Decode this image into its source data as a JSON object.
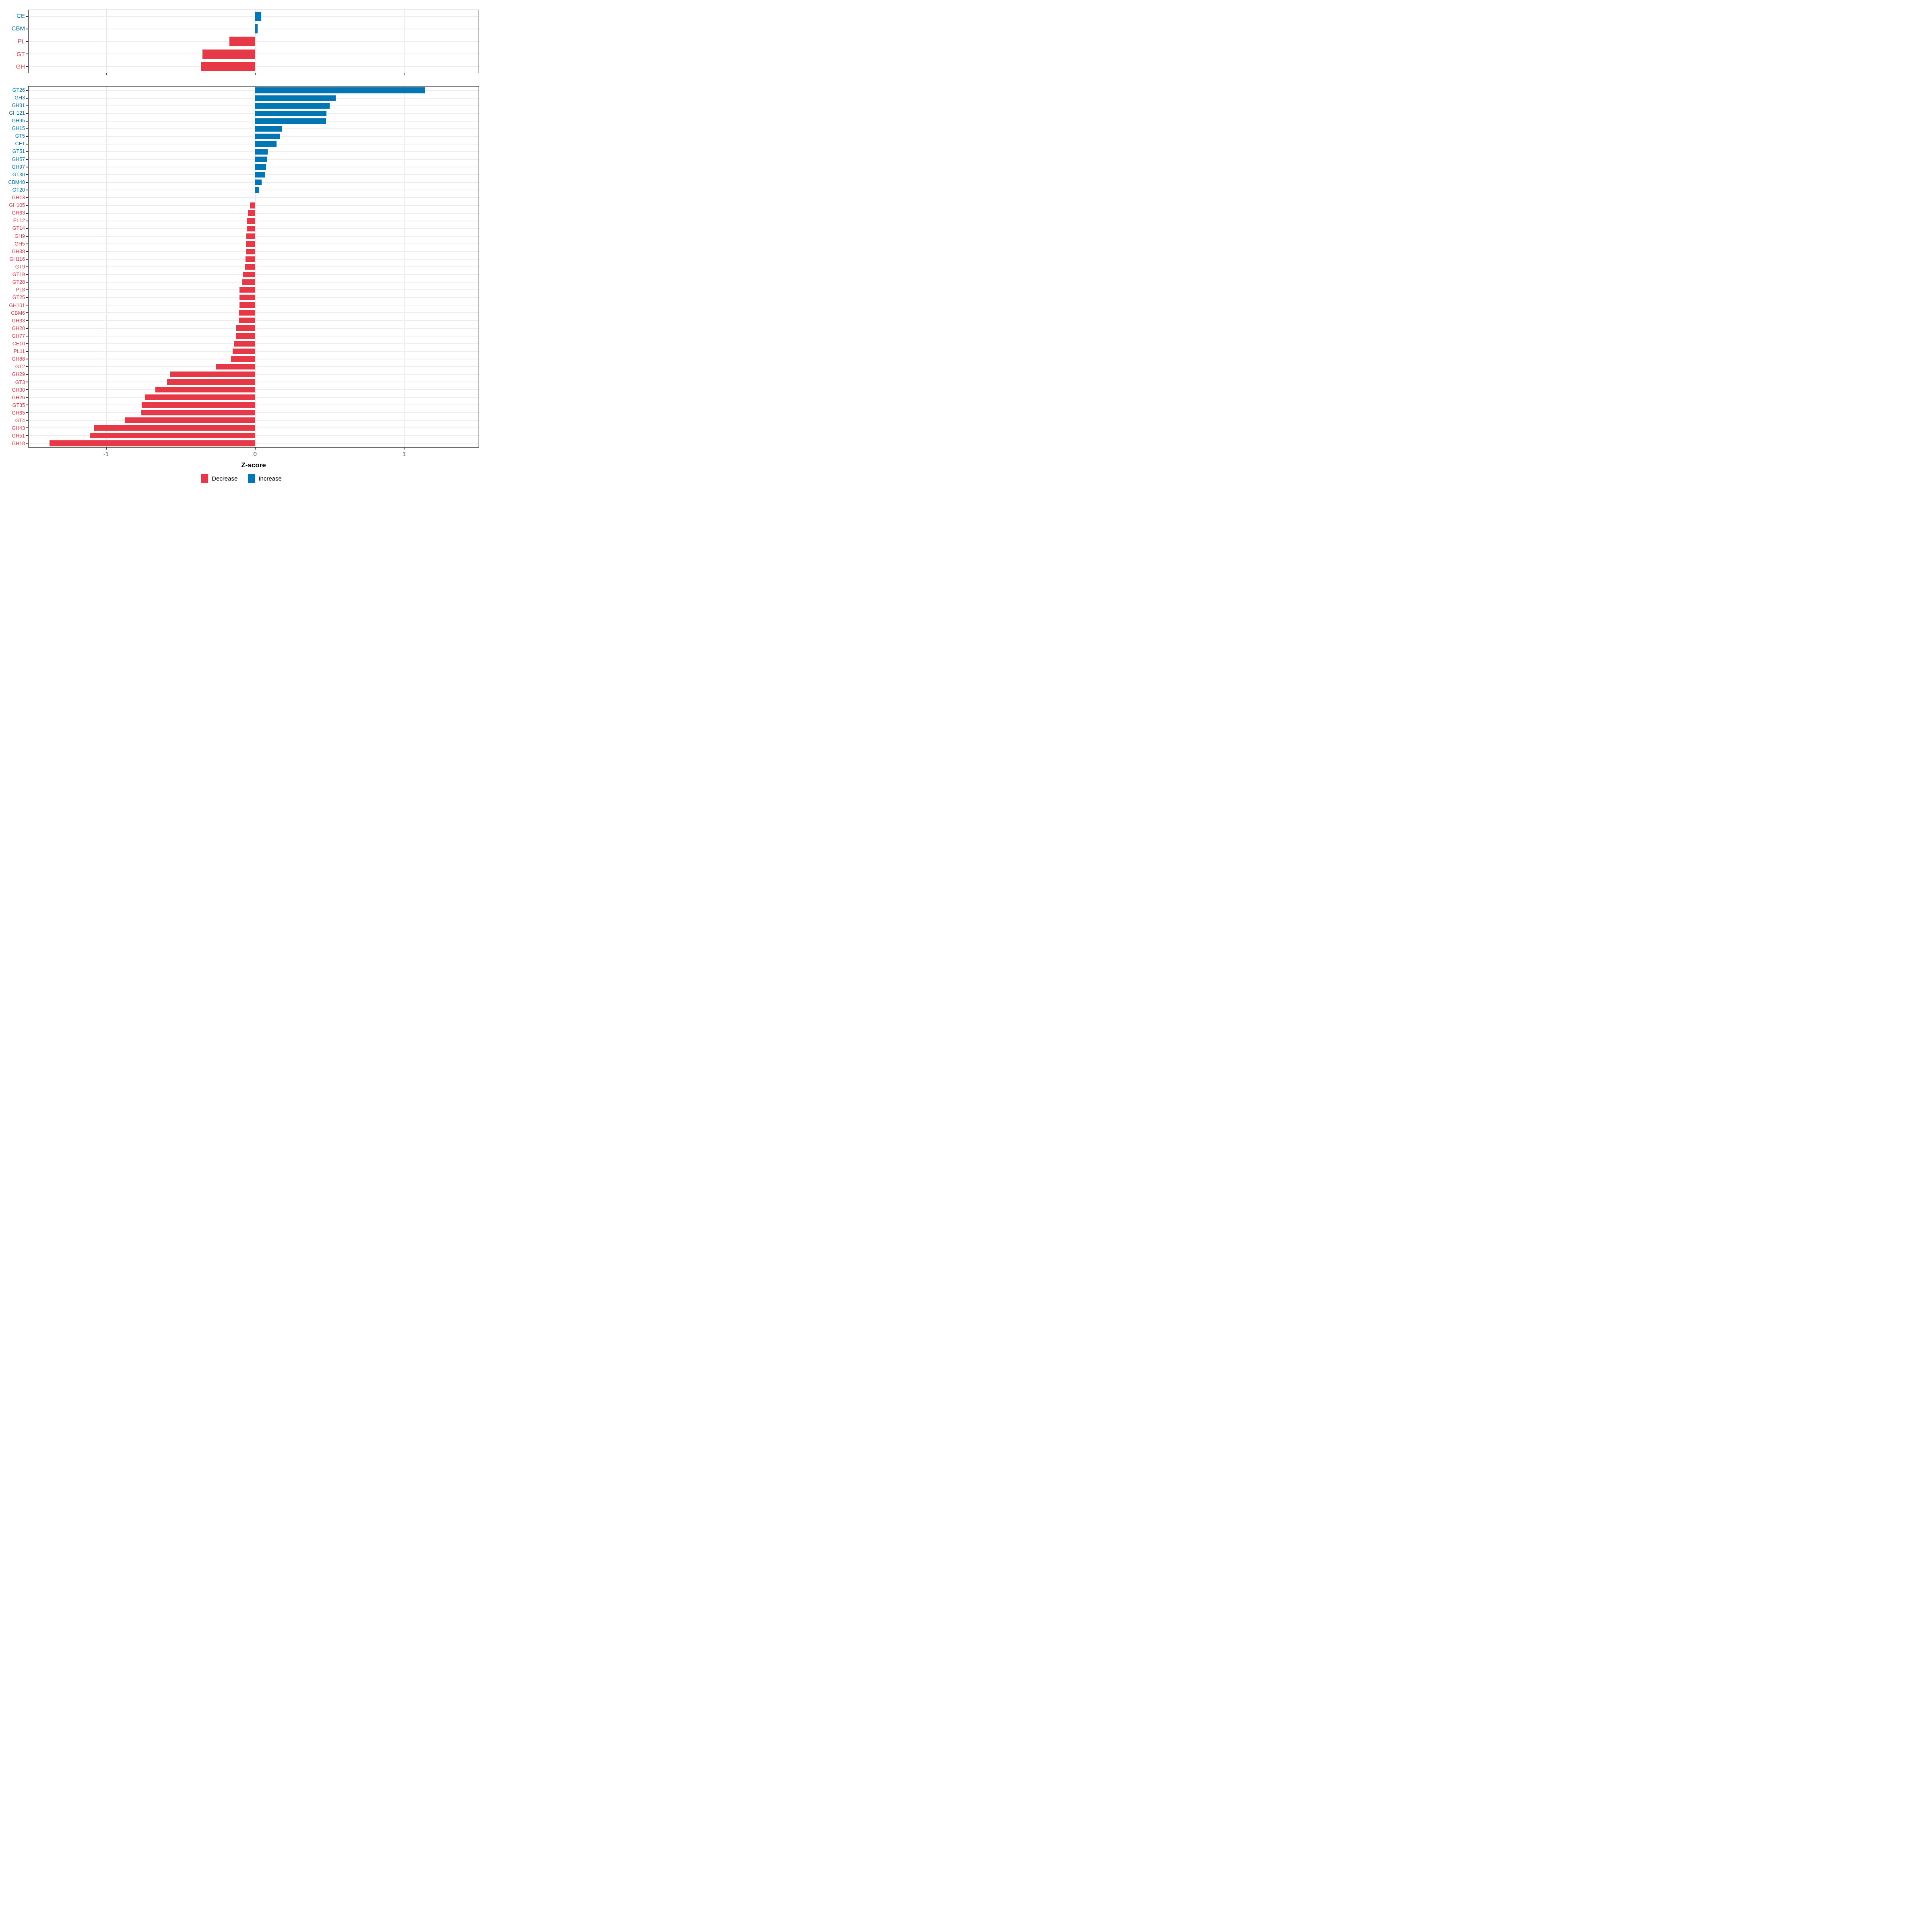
{
  "chart_data": [
    {
      "id": "class_panel",
      "type": "bar",
      "orientation": "horizontal",
      "title": "",
      "categories": [
        "CE",
        "CBM",
        "PL",
        "GT",
        "GH"
      ],
      "values": [
        0.041,
        0.017,
        -0.171,
        -0.352,
        -0.365
      ],
      "grid": true,
      "legend_position": "none"
    },
    {
      "id": "family_panel",
      "type": "bar",
      "orientation": "horizontal",
      "title": "",
      "categories": [
        "GT26",
        "GH3",
        "GH31",
        "GH121",
        "GH95",
        "GH15",
        "GT5",
        "CE1",
        "GT51",
        "GH57",
        "GH97",
        "GT30",
        "CBM48",
        "GT20",
        "GH13",
        "GH105",
        "GH63",
        "PL12",
        "GT14",
        "GH9",
        "GH5",
        "GH38",
        "GH116",
        "GT9",
        "GT19",
        "GT28",
        "PL8",
        "GT25",
        "GH101",
        "CBM6",
        "GH33",
        "GH20",
        "GH77",
        "CE10",
        "PL11",
        "GH88",
        "GT2",
        "GH29",
        "GT3",
        "GH30",
        "GH26",
        "GT35",
        "GH65",
        "GT4",
        "GH43",
        "GH51",
        "GH18"
      ],
      "values": [
        1.14,
        0.54,
        0.5,
        0.48,
        0.475,
        0.18,
        0.165,
        0.145,
        0.085,
        0.08,
        0.075,
        0.065,
        0.044,
        0.028,
        -0.002,
        -0.034,
        -0.048,
        -0.054,
        -0.056,
        -0.059,
        -0.061,
        -0.062,
        -0.063,
        -0.066,
        -0.083,
        -0.085,
        -0.104,
        -0.104,
        -0.105,
        -0.108,
        -0.111,
        -0.125,
        -0.128,
        -0.14,
        -0.15,
        -0.16,
        -0.26,
        -0.57,
        -0.59,
        -0.67,
        -0.74,
        -0.76,
        -0.765,
        -0.875,
        -1.08,
        -1.11,
        -1.38
      ],
      "grid": true,
      "legend_position": "bottom"
    }
  ],
  "axis": {
    "xlabel": "Z-score",
    "ticks": [
      -1,
      0,
      1
    ],
    "tick_labels": [
      "-1",
      "0",
      "1"
    ],
    "xlim": [
      -1.52,
      1.5
    ]
  },
  "legend": {
    "items": [
      {
        "label": "Decrease",
        "direction": "decrease"
      },
      {
        "label": "Increase",
        "direction": "increase"
      }
    ]
  },
  "colors": {
    "decrease": "#E73847",
    "increase": "#0076B4",
    "tick_text": "#4d4d4d",
    "panel_border": "#2f2f2f",
    "gridline": "#e3e3e3"
  }
}
